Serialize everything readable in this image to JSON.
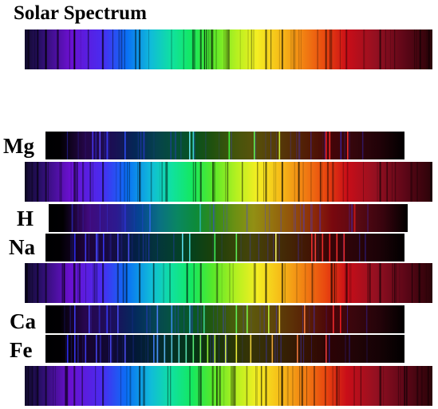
{
  "title": "Solar Spectrum",
  "elements": {
    "mg": "Mg",
    "h": "H",
    "na": "Na",
    "ca": "Ca",
    "fe": "Fe"
  }
}
